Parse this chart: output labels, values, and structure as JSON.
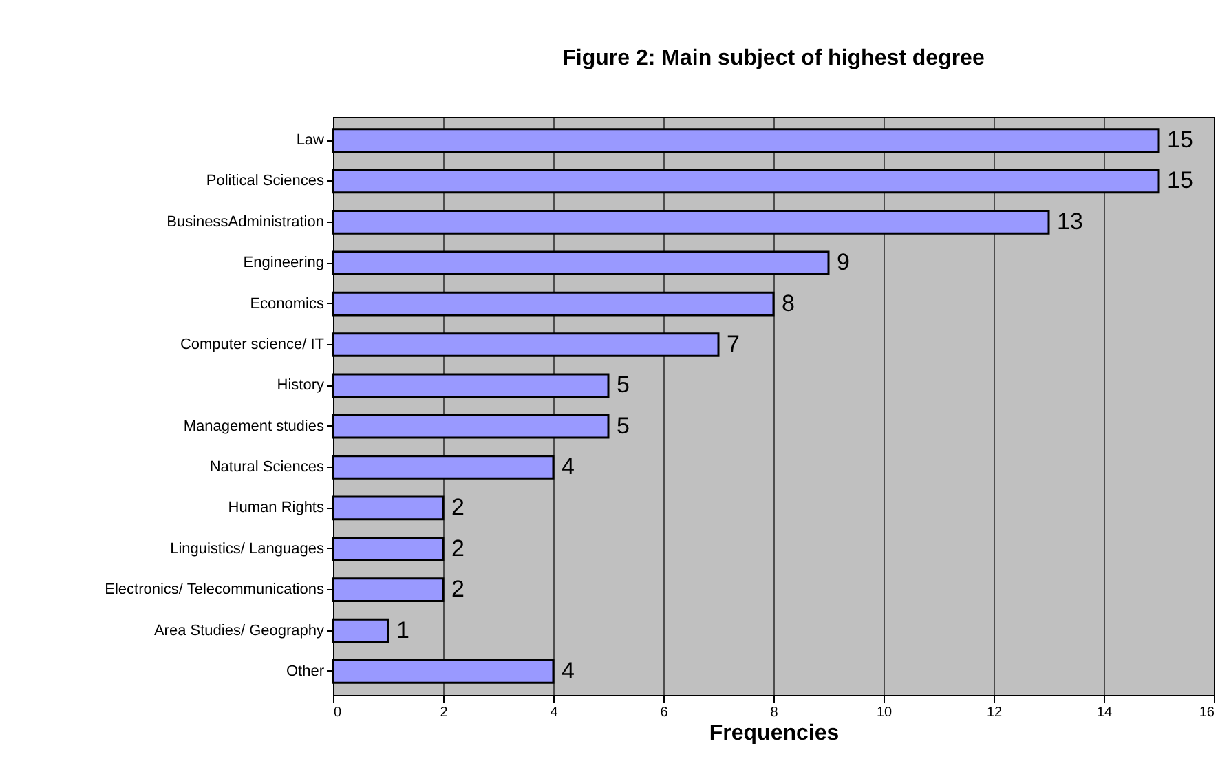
{
  "chart_data": {
    "type": "bar",
    "orientation": "horizontal",
    "title": "Figure 2: Main subject of highest degree",
    "xlabel": "Frequencies",
    "categories": [
      "Law",
      "Political Sciences",
      "BusinessAdministration",
      "Engineering",
      "Economics",
      "Computer science/ IT",
      "History",
      "Management studies",
      "Natural Sciences",
      "Human Rights",
      "Linguistics/ Languages",
      "Electronics/ Telecommunications",
      "Area Studies/ Geography",
      "Other"
    ],
    "values": [
      15,
      15,
      13,
      9,
      8,
      7,
      5,
      5,
      4,
      2,
      2,
      2,
      1,
      4
    ],
    "color": "#9999ff",
    "xlim": [
      0,
      16
    ],
    "xticks": [
      0,
      2,
      4,
      6,
      8,
      10,
      12,
      14,
      16
    ],
    "grid": "x",
    "data_labels": true
  }
}
